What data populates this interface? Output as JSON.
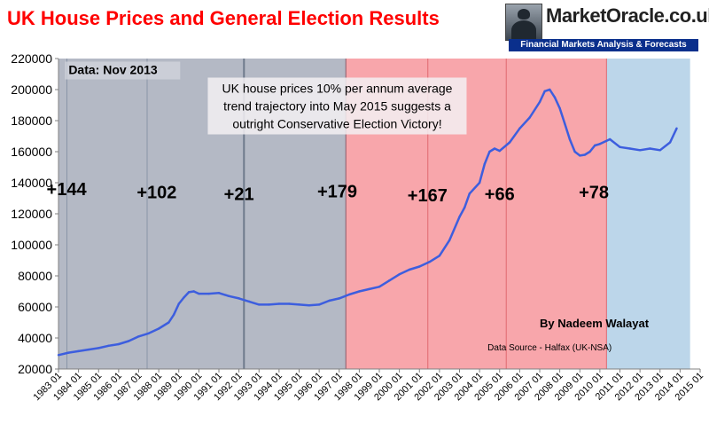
{
  "chart_data": {
    "type": "line",
    "title": "UK House Prices and General Election Results",
    "xlabel": "",
    "ylabel": "",
    "xlim": [
      1983.0,
      2015.0
    ],
    "ylim": [
      20000,
      220000
    ],
    "y_ticks": [
      20000,
      40000,
      60000,
      80000,
      100000,
      120000,
      140000,
      160000,
      180000,
      200000,
      220000
    ],
    "x_ticks": [
      "1983 01",
      "1984 01",
      "1985 01",
      "1986 01",
      "1987 01",
      "1988 01",
      "1989 01",
      "1990 01",
      "1991 01",
      "1992 01",
      "1993 01",
      "1994 01",
      "1995 01",
      "1996 01",
      "1997 01",
      "1998 01",
      "1999 01",
      "2000 01",
      "2001 01",
      "2002 01",
      "2003 01",
      "2004 01",
      "2005 01",
      "2006 01",
      "2007 01",
      "2008 01",
      "2009 01",
      "2010 01",
      "2011 01",
      "2012 01",
      "2013 01",
      "2014 01",
      "2015 01"
    ],
    "grid": false,
    "shaded_periods": [
      {
        "from": 1983.0,
        "to": 1997.33,
        "color": "#b4b9c5"
      },
      {
        "from": 1997.33,
        "to": 2010.33,
        "color": "#f8a6ab"
      },
      {
        "from": 2010.33,
        "to": 2014.5,
        "color": "#bcd6ea"
      }
    ],
    "election_lines": [
      {
        "x": 1983.42,
        "color": "#8a95a8"
      },
      {
        "x": 1987.42,
        "color": "#8a95a8"
      },
      {
        "x": 1992.25,
        "color": "#6f7a8c"
      },
      {
        "x": 1997.33,
        "color": "#8a5a6a"
      },
      {
        "x": 2001.42,
        "color": "#e06870"
      },
      {
        "x": 2005.33,
        "color": "#e06870"
      },
      {
        "x": 2010.33,
        "color": "#e06870"
      }
    ],
    "election_labels": [
      {
        "text": "+144",
        "x": 1983.4,
        "y": 132000
      },
      {
        "text": "+102",
        "x": 1987.9,
        "y": 130000
      },
      {
        "text": "+21",
        "x": 1992.0,
        "y": 129000
      },
      {
        "text": "+179",
        "x": 1996.9,
        "y": 130500
      },
      {
        "text": "+167",
        "x": 2001.4,
        "y": 128000
      },
      {
        "text": "+66",
        "x": 2005.0,
        "y": 129000
      },
      {
        "text": "+78",
        "x": 2009.7,
        "y": 130000
      }
    ],
    "annotations": [
      {
        "text": "Data:  Nov  2013",
        "x": 1983.5,
        "y": 210000
      },
      {
        "text": "UK house prices 10% per annum average\ntrend trajectory into May 2015 suggests a\noutright Conservative Election Victory!",
        "x": 1990.8,
        "y": 198000
      },
      {
        "text": "By Nadeem Walayat",
        "x": 2007.0,
        "y": 47000
      },
      {
        "text": "Data Source - Halfax  (UK-NSA)",
        "x": 2004.4,
        "y": 32000
      }
    ],
    "series": [
      {
        "name": "",
        "color": "#3d5ede",
        "x": [
          1983.0,
          1983.5,
          1984.0,
          1984.5,
          1985.0,
          1985.5,
          1986.0,
          1986.5,
          1987.0,
          1987.5,
          1988.0,
          1988.5,
          1988.75,
          1989.0,
          1989.25,
          1989.5,
          1989.75,
          1990.0,
          1990.5,
          1991.0,
          1991.5,
          1992.0,
          1992.5,
          1993.0,
          1993.5,
          1994.0,
          1994.5,
          1995.0,
          1995.5,
          1996.0,
          1996.5,
          1997.0,
          1997.5,
          1998.0,
          1998.5,
          1999.0,
          1999.5,
          2000.0,
          2000.5,
          2001.0,
          2001.5,
          2002.0,
          2002.5,
          2003.0,
          2003.25,
          2003.5,
          2004.0,
          2004.25,
          2004.5,
          2004.75,
          2005.0,
          2005.5,
          2006.0,
          2006.5,
          2007.0,
          2007.25,
          2007.5,
          2007.75,
          2008.0,
          2008.25,
          2008.5,
          2008.75,
          2009.0,
          2009.25,
          2009.5,
          2009.75,
          2010.0,
          2010.5,
          2011.0,
          2011.5,
          2012.0,
          2012.5,
          2013.0,
          2013.5,
          2013.83
        ],
        "y": [
          29000,
          30500,
          31500,
          32500,
          33500,
          35000,
          36000,
          38000,
          41000,
          43000,
          46000,
          50000,
          55000,
          62000,
          66000,
          69500,
          70000,
          68500,
          68500,
          69000,
          67000,
          65500,
          63500,
          61500,
          61500,
          62000,
          62000,
          61500,
          61000,
          61500,
          64000,
          65500,
          68000,
          70000,
          71500,
          73000,
          77000,
          81000,
          84000,
          86000,
          89000,
          93000,
          103000,
          118000,
          124000,
          133000,
          140000,
          152000,
          160000,
          162000,
          160500,
          166000,
          175000,
          182000,
          192000,
          199000,
          200000,
          195000,
          188000,
          178000,
          168000,
          160000,
          157500,
          158000,
          160000,
          164000,
          165000,
          168000,
          163000,
          162000,
          161000,
          162000,
          161000,
          166000,
          175000
        ]
      }
    ]
  }
}
